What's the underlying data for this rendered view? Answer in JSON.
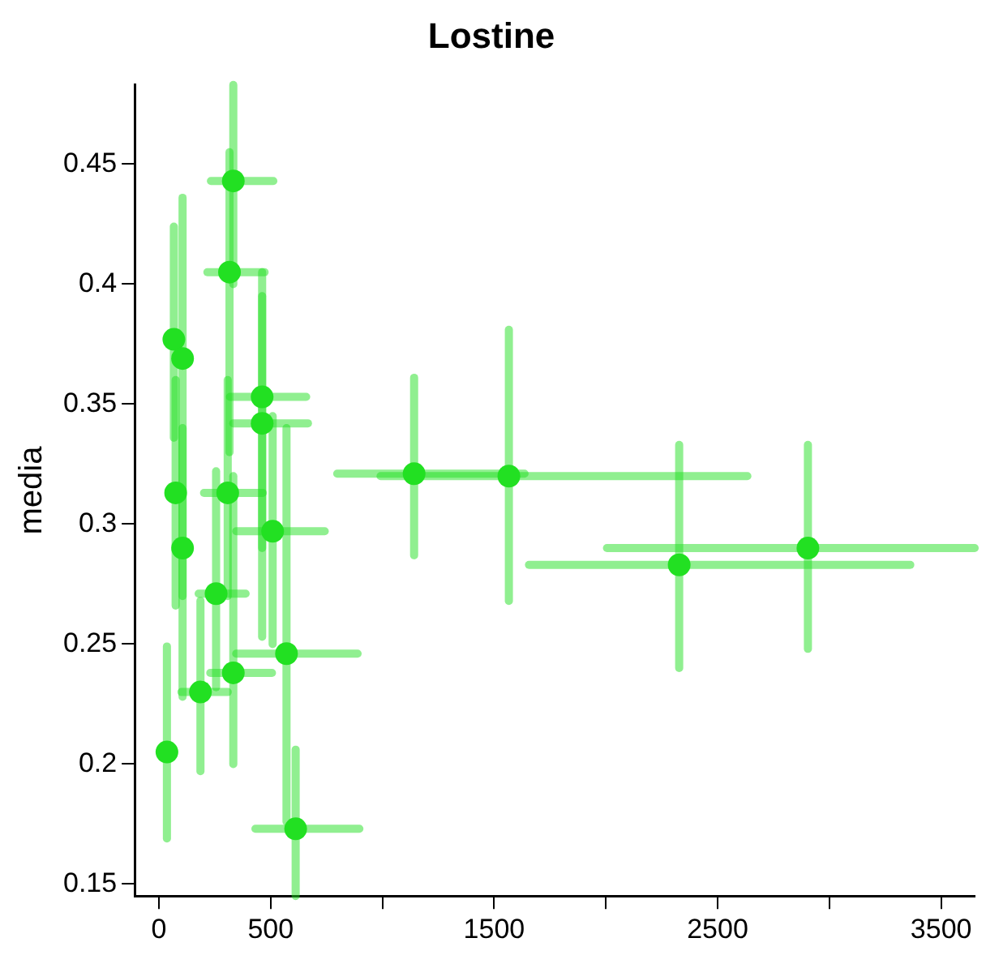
{
  "chart_data": {
    "type": "scatter",
    "title": "Lostine",
    "ylabel": "media",
    "x": [
      333,
      316,
      67,
      106,
      462,
      462,
      75,
      308,
      509,
      106,
      256,
      571,
      333,
      186,
      36,
      612,
      1142,
      1566,
      2328,
      2904
    ],
    "series": [
      {
        "color": "#22e022",
        "values": [
          0.443,
          0.405,
          0.377,
          0.369,
          0.353,
          0.342,
          0.313,
          0.313,
          0.297,
          0.29,
          0.271,
          0.246,
          0.238,
          0.23,
          0.205,
          0.173,
          0.321,
          0.32,
          0.283,
          0.29
        ],
        "errors": [
          [
            0.4,
            0.483
          ],
          [
            0.33,
            0.455
          ],
          [
            0.336,
            0.424
          ],
          [
            0.27,
            0.436
          ],
          [
            0.29,
            0.405
          ],
          [
            0.253,
            0.395
          ],
          [
            0.266,
            0.36
          ],
          [
            0.27,
            0.36
          ],
          [
            0.25,
            0.345
          ],
          [
            0.228,
            0.34
          ],
          [
            0.232,
            0.322
          ],
          [
            0.176,
            0.34
          ],
          [
            0.2,
            0.32
          ],
          [
            0.197,
            0.268
          ],
          [
            0.169,
            0.249
          ],
          [
            0.145,
            0.206
          ],
          [
            0.287,
            0.361
          ],
          [
            0.268,
            0.381
          ],
          [
            0.24,
            0.333
          ],
          [
            0.248,
            0.333
          ]
        ],
        "xerrors": [
          [
            233,
            512
          ],
          [
            217,
            473
          ],
          null,
          null,
          [
            318,
            659
          ],
          [
            333,
            667
          ],
          null,
          [
            202,
            465
          ],
          [
            346,
            742
          ],
          null,
          [
            178,
            388
          ],
          [
            346,
            889
          ],
          [
            230,
            506
          ],
          [
            101,
            308
          ],
          null,
          [
            432,
            897
          ],
          [
            798,
            1636
          ],
          [
            992,
            2633
          ],
          [
            1656,
            3362
          ],
          [
            2005,
            3650
          ]
        ]
      }
    ],
    "xlim": [
      -108,
      3650
    ],
    "ylim": [
      0.145,
      0.483
    ],
    "xticks": [
      0,
      500,
      {
        "value": 1000,
        "label": null
      },
      1500,
      {
        "value": 2000,
        "label": null
      },
      2500,
      {
        "value": 3000,
        "label": null
      },
      3500
    ],
    "yticks": [
      0.15,
      0.2,
      0.25,
      0.3,
      0.35,
      0.4,
      0.45
    ],
    "grid": false,
    "legend": false,
    "marker": "circle"
  }
}
